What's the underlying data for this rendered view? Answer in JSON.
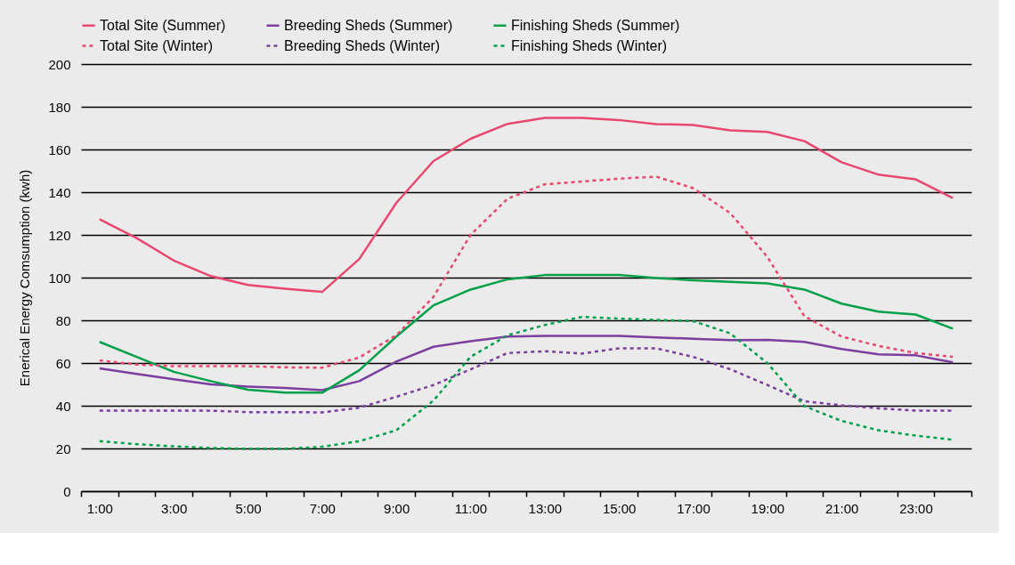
{
  "chart_data": {
    "type": "line",
    "ylabel": "Enerical Energy Comsumption (kwh)",
    "x": [
      1,
      2,
      3,
      4,
      5,
      6,
      7,
      8,
      9,
      10,
      11,
      12,
      13,
      14,
      15,
      16,
      17,
      18,
      19,
      20,
      21,
      22,
      23,
      24
    ],
    "xlim": [
      0.5,
      24.5
    ],
    "xticks": [
      {
        "value": 0.5,
        "label": null
      },
      {
        "value": 1,
        "label": "1:00"
      },
      {
        "value": 1.5,
        "label": null
      },
      {
        "value": 2.5,
        "label": null
      },
      {
        "value": 3,
        "label": "3:00"
      },
      {
        "value": 3.5,
        "label": null
      },
      {
        "value": 4.5,
        "label": null
      },
      {
        "value": 5,
        "label": "5:00"
      },
      {
        "value": 5.5,
        "label": null
      },
      {
        "value": 6.5,
        "label": null
      },
      {
        "value": 7,
        "label": "7:00"
      },
      {
        "value": 7.5,
        "label": null
      },
      {
        "value": 8.5,
        "label": null
      },
      {
        "value": 9,
        "label": "9:00"
      },
      {
        "value": 9.5,
        "label": null
      },
      {
        "value": 10.5,
        "label": null
      },
      {
        "value": 11,
        "label": "11:00"
      },
      {
        "value": 11.5,
        "label": null
      },
      {
        "value": 12.5,
        "label": null
      },
      {
        "value": 13,
        "label": "13:00"
      },
      {
        "value": 13.5,
        "label": null
      },
      {
        "value": 14.5,
        "label": null
      },
      {
        "value": 15,
        "label": "15:00"
      },
      {
        "value": 15.5,
        "label": null
      },
      {
        "value": 16.5,
        "label": null
      },
      {
        "value": 17,
        "label": "17:00"
      },
      {
        "value": 17.5,
        "label": null
      },
      {
        "value": 18.5,
        "label": null
      },
      {
        "value": 19,
        "label": "19:00"
      },
      {
        "value": 19.5,
        "label": null
      },
      {
        "value": 20.5,
        "label": null
      },
      {
        "value": 21,
        "label": "21:00"
      },
      {
        "value": 21.5,
        "label": null
      },
      {
        "value": 22.5,
        "label": null
      },
      {
        "value": 23,
        "label": "23:00"
      },
      {
        "value": 23.5,
        "label": null
      },
      {
        "value": 24.5,
        "label": null
      }
    ],
    "ylim": [
      0,
      200
    ],
    "yticks": [
      0,
      20,
      40,
      60,
      80,
      100,
      120,
      140,
      160,
      180,
      200
    ],
    "grid": "y",
    "legend": "top",
    "marker": "none",
    "series": [
      {
        "name": "Total Site (Summer)",
        "color": "#e8476f",
        "line_style": "solid",
        "values": [
          127.3,
          118.5,
          108,
          100.7,
          96.6,
          94.8,
          93.3,
          108.7,
          135,
          154.6,
          165,
          172,
          174.8,
          174.8,
          173.8,
          171.9,
          171.5,
          169,
          168.2,
          163.9,
          154,
          148.2,
          146,
          137.2
        ]
      },
      {
        "name": "Breeding Sheds (Summer)",
        "color": "#7b3f9e",
        "line_style": "solid",
        "values": [
          57.5,
          54.9,
          52.4,
          50,
          49,
          48.3,
          47.3,
          51.5,
          60.7,
          67.6,
          70.2,
          72.4,
          72.7,
          72.7,
          72.7,
          72,
          71.4,
          70.7,
          70.8,
          69.9,
          66.6,
          64.1,
          63.6,
          60.3
        ]
      },
      {
        "name": "Finishing Sheds (Summer)",
        "color": "#00a04a",
        "line_style": "solid",
        "values": [
          69.9,
          62.9,
          55.9,
          51.5,
          47.5,
          46.1,
          46.1,
          56.6,
          72.4,
          87,
          94.4,
          99.2,
          101.2,
          101.2,
          101.2,
          99.8,
          98.8,
          98,
          97.3,
          94.4,
          87.8,
          84.1,
          82.7,
          76.1
        ]
      },
      {
        "name": "Total Site (Winter)",
        "color": "#e8476f",
        "line_style": "dotted",
        "values": [
          61.2,
          59.3,
          58.5,
          58.5,
          58.5,
          58,
          57.8,
          62.6,
          73,
          91,
          120,
          137,
          143.7,
          145,
          146.3,
          147.3,
          141.9,
          130.2,
          109.7,
          81.9,
          72.4,
          68,
          64.7,
          62.9
        ]
      },
      {
        "name": "Breeding Sheds (Winter)",
        "color": "#7b3f9e",
        "line_style": "dotted",
        "values": [
          37.7,
          37.7,
          37.7,
          37.7,
          37,
          37,
          36.9,
          39.1,
          44.2,
          49.7,
          57,
          64.7,
          65.5,
          64.4,
          66.9,
          66.9,
          62.9,
          57.1,
          49.7,
          42.1,
          40.2,
          38.8,
          37.7,
          37.7
        ]
      },
      {
        "name": "Finishing Sheds (Winter)",
        "color": "#00a04a",
        "line_style": "dotted",
        "values": [
          23.4,
          22,
          21,
          20.2,
          19.8,
          19.8,
          20.8,
          23.4,
          28.5,
          42.4,
          62.9,
          73,
          77.8,
          81.6,
          80.8,
          80.2,
          79.6,
          73.9,
          60,
          39.8,
          32.9,
          28.5,
          26,
          24.1
        ]
      }
    ]
  }
}
